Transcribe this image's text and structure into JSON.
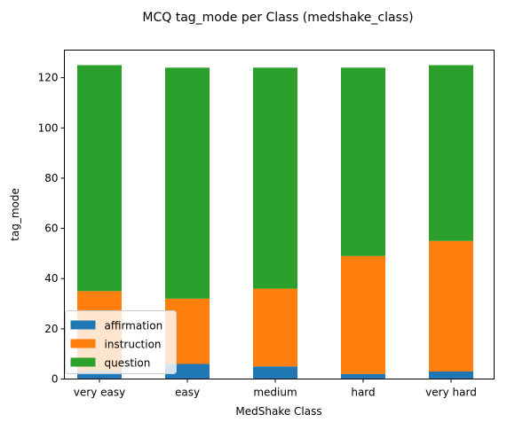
{
  "chart_data": {
    "type": "bar",
    "stacked": true,
    "title": "MCQ tag_mode per Class (medshake_class)",
    "xlabel": "MedShake Class",
    "ylabel": "tag_mode",
    "categories": [
      "very easy",
      "easy",
      "medium",
      "hard",
      "very hard"
    ],
    "series": [
      {
        "name": "affirmation",
        "color": "#1f77b4",
        "values": [
          3,
          6,
          5,
          2,
          3
        ]
      },
      {
        "name": "instruction",
        "color": "#ff7f0e",
        "values": [
          32,
          26,
          31,
          47,
          52
        ]
      },
      {
        "name": "question",
        "color": "#2ca02c",
        "values": [
          90,
          92,
          88,
          75,
          70
        ]
      }
    ],
    "ylim": [
      0,
      131
    ],
    "yticks": [
      0,
      20,
      40,
      60,
      80,
      100,
      120
    ],
    "grid": false,
    "legend_position": "lower-left"
  }
}
